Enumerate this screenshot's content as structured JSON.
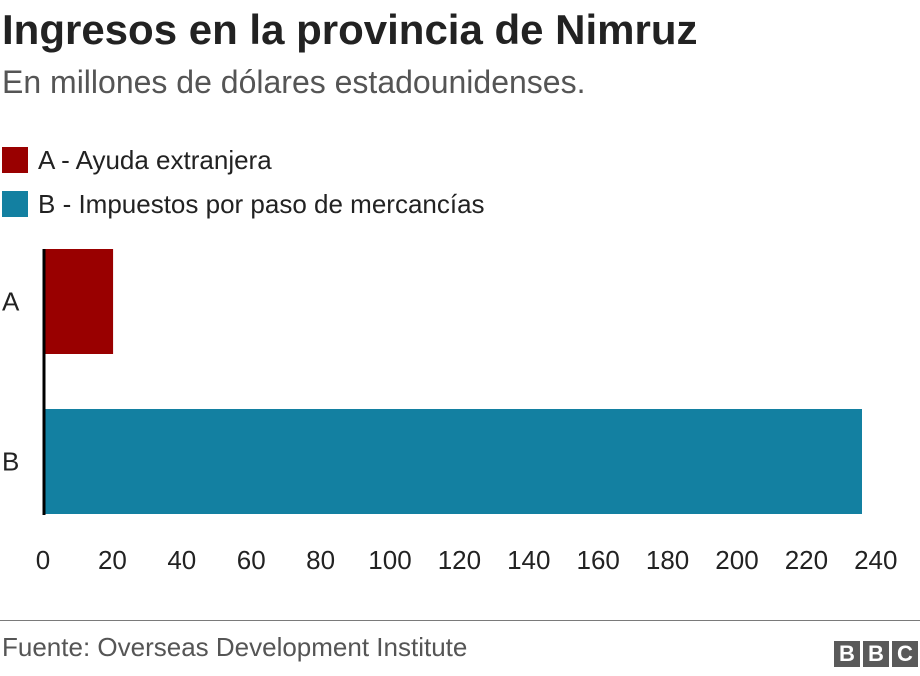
{
  "chart_data": {
    "type": "bar",
    "orientation": "horizontal",
    "title": "Ingresos en la provincia de Nimruz",
    "subtitle": "En millones de dólares estadounidenses.",
    "categories": [
      "A",
      "B"
    ],
    "values": [
      20,
      240
    ],
    "colors": [
      "#990000",
      "#1380A1"
    ],
    "legend": [
      {
        "label": "A - Ayuda extranjera",
        "color": "#990000"
      },
      {
        "label": "B - Impuestos por paso de mercancías",
        "color": "#1380A1"
      }
    ],
    "xlim": [
      0,
      240
    ],
    "xticks": [
      "0",
      "20",
      "40",
      "60",
      "80",
      "100",
      "120",
      "140",
      "160",
      "180",
      "200",
      "220",
      "240"
    ],
    "grid": false,
    "legend_position": "top-left"
  },
  "source": "Fuente: Overseas Development Institute",
  "logo": {
    "letters": [
      "B",
      "B",
      "C"
    ],
    "color": "#5a5a5a"
  }
}
